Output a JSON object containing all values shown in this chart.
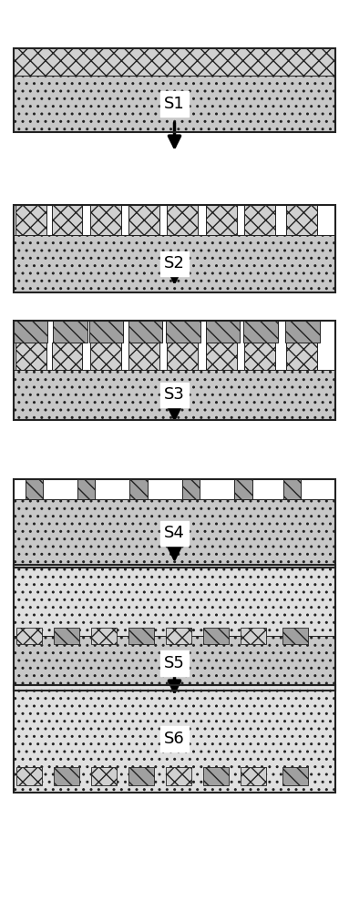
{
  "fig_width": 3.83,
  "fig_height": 10.0,
  "bg_color": "#ffffff",
  "labels": [
    "S1",
    "S2",
    "S3",
    "S4",
    "S5",
    "S6"
  ],
  "cross_fc": "#d0d0d0",
  "dot_fc": "#c8c8c8",
  "diag_fc": "#a0a0a0",
  "light_dot_fc": "#e0e0e0",
  "ec": "#222222",
  "lw_border": 1.5,
  "lw_block": 0.7
}
